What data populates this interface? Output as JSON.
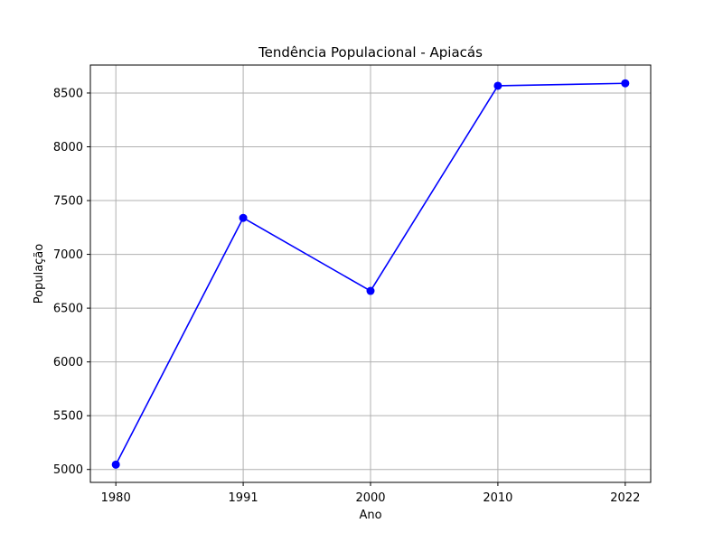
{
  "chart_data": {
    "type": "line",
    "title": "Tendência Populacional - Apiacás",
    "xlabel": "Ano",
    "ylabel": "População",
    "categories": [
      "1980",
      "1991",
      "2000",
      "2010",
      "2022"
    ],
    "series": [
      {
        "values": [
          5045,
          7339,
          6660,
          8567,
          8590
        ]
      }
    ],
    "yticks": [
      5000,
      5500,
      6000,
      6500,
      7000,
      7500,
      8000,
      8500
    ],
    "ylim": [
      4880,
      8760
    ],
    "grid": true,
    "legend": "none",
    "colors": {
      "line": "#0000ff",
      "marker": "#0000ff",
      "grid": "#b0b0b0",
      "frame": "#000000"
    }
  }
}
